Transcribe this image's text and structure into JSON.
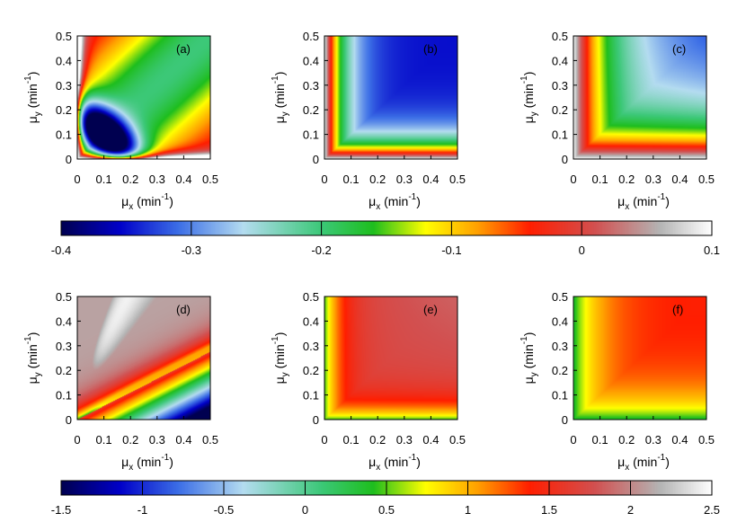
{
  "charts": [
    {
      "id": "a",
      "panel_label": "(a)",
      "row": 0,
      "col": 0
    },
    {
      "id": "b",
      "panel_label": "(b)",
      "row": 0,
      "col": 1
    },
    {
      "id": "c",
      "panel_label": "(c)",
      "row": 0,
      "col": 2
    },
    {
      "id": "d",
      "panel_label": "(d)",
      "row": 1,
      "col": 0
    },
    {
      "id": "e",
      "panel_label": "(e)",
      "row": 1,
      "col": 1
    },
    {
      "id": "f",
      "panel_label": "(f)",
      "row": 1,
      "col": 2
    }
  ],
  "axes": {
    "xlabel_main": "μ",
    "xlabel_sub": "x",
    "xlabel_unit": " (min",
    "ylabel_main": "μ",
    "ylabel_sub": "y",
    "ylabel_unit": " (min",
    "unit_sup": "-1",
    "unit_close": ")",
    "ticks": [
      "0",
      "0.1",
      "0.2",
      "0.3",
      "0.4",
      "0.5"
    ]
  },
  "colorbars": [
    {
      "row": 0,
      "range": [
        -0.4,
        0.1
      ],
      "labels": [
        "-0.4",
        "-0.3",
        "-0.2",
        "-0.1",
        "0",
        "0.1"
      ]
    },
    {
      "row": 1,
      "range": [
        -1.5,
        2.5
      ],
      "labels": [
        "-1.5",
        "-1",
        "-0.5",
        "0",
        "0.5",
        "1",
        "1.5",
        "2",
        "2.5"
      ]
    }
  ],
  "colormap": [
    {
      "pos": 0.0,
      "color": "#000050"
    },
    {
      "pos": 0.09,
      "color": "#0000c8"
    },
    {
      "pos": 0.18,
      "color": "#3c6ee6"
    },
    {
      "pos": 0.28,
      "color": "#b4dcf0"
    },
    {
      "pos": 0.4,
      "color": "#3cc878"
    },
    {
      "pos": 0.48,
      "color": "#1ebe1e"
    },
    {
      "pos": 0.56,
      "color": "#ffff00"
    },
    {
      "pos": 0.64,
      "color": "#ffa000"
    },
    {
      "pos": 0.72,
      "color": "#ff1e00"
    },
    {
      "pos": 0.82,
      "color": "#d25050"
    },
    {
      "pos": 0.92,
      "color": "#b4b4b4"
    },
    {
      "pos": 1.0,
      "color": "#ffffff"
    }
  ],
  "chart_data": [
    {
      "type": "heatmap",
      "panel": "(a)",
      "xlim": [
        0,
        0.5
      ],
      "ylim": [
        0,
        0.5
      ],
      "zlim": [
        -0.4,
        0.1
      ],
      "minimum": {
        "x": 0.11,
        "y": 0.1,
        "value": -0.38
      }
    },
    {
      "type": "heatmap",
      "panel": "(b)",
      "xlim": [
        0,
        0.5
      ],
      "ylim": [
        0,
        0.5
      ],
      "zlim": [
        -0.4,
        0.1
      ],
      "minimum": {
        "x": 0.35,
        "y": 0.35,
        "value": -0.35
      }
    },
    {
      "type": "heatmap",
      "panel": "(c)",
      "xlim": [
        0,
        0.5
      ],
      "ylim": [
        0,
        0.5
      ],
      "zlim": [
        -0.4,
        0.1
      ],
      "minimum": {
        "x": 0.5,
        "y": 0.5,
        "value": -0.3
      }
    },
    {
      "type": "heatmap",
      "panel": "(d)",
      "xlim": [
        0,
        0.5
      ],
      "ylim": [
        0,
        0.5
      ],
      "zlim": [
        -1.5,
        2.5
      ],
      "maximum": {
        "x": 0.2,
        "y": 0.3,
        "value": 2.4
      }
    },
    {
      "type": "heatmap",
      "panel": "(e)",
      "xlim": [
        0,
        0.5
      ],
      "ylim": [
        0,
        0.5
      ],
      "zlim": [
        -1.5,
        2.5
      ],
      "maximum": {
        "x": 0.3,
        "y": 0.4,
        "value": 1.7
      }
    },
    {
      "type": "heatmap",
      "panel": "(f)",
      "xlim": [
        0,
        0.5
      ],
      "ylim": [
        0,
        0.5
      ],
      "zlim": [
        -1.5,
        2.5
      ],
      "maximum": {
        "x": 0.5,
        "y": 0.5,
        "value": 1.35
      }
    }
  ]
}
